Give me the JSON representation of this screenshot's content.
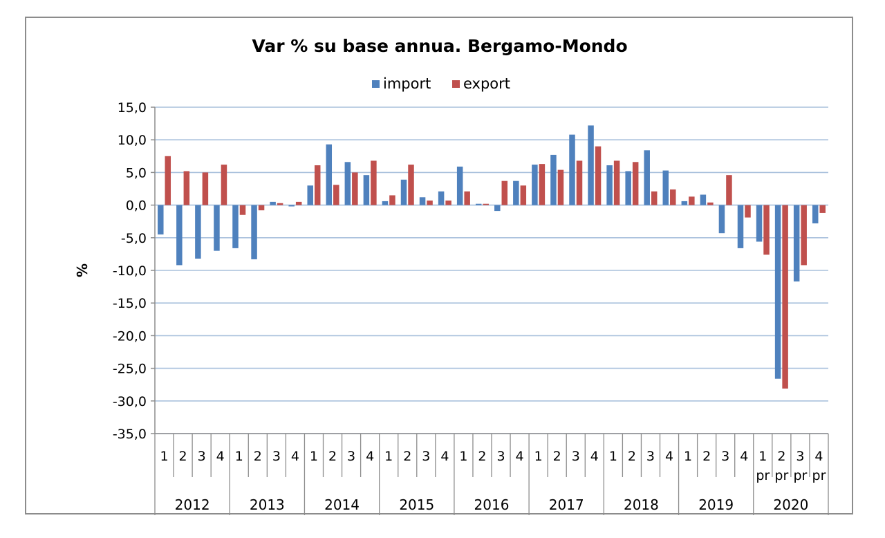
{
  "chart_data": {
    "type": "bar",
    "title": "Var % su base annua. Bergamo-Mondo",
    "ylabel": "%",
    "xlabel": "",
    "ylim": [
      -35,
      15
    ],
    "yticks": [
      15,
      10,
      5,
      0,
      -5,
      -10,
      -15,
      -20,
      -25,
      -30,
      -35
    ],
    "ytick_labels": [
      "15,0",
      "10,0",
      "5,0",
      "0,0",
      "-5,0",
      "-10,0",
      "-15,0",
      "-20,0",
      "-25,0",
      "-30,0",
      "-35,0"
    ],
    "grid": true,
    "legend_position": "top-center",
    "colors": {
      "import": "#4f81bd",
      "export": "#c0504d",
      "grid": "#a8c0dc",
      "axis": "#8c8c8c"
    },
    "years": [
      "2012",
      "2013",
      "2014",
      "2015",
      "2016",
      "2017",
      "2018",
      "2019",
      "2020"
    ],
    "quarters": [
      "1",
      "2",
      "3",
      "4"
    ],
    "quarter_suffix_2020": "pr",
    "categories": [
      "2012 1",
      "2012 2",
      "2012 3",
      "2012 4",
      "2013 1",
      "2013 2",
      "2013 3",
      "2013 4",
      "2014 1",
      "2014 2",
      "2014 3",
      "2014 4",
      "2015 1",
      "2015 2",
      "2015 3",
      "2015 4",
      "2016 1",
      "2016 2",
      "2016 3",
      "2016 4",
      "2017 1",
      "2017 2",
      "2017 3",
      "2017 4",
      "2018 1",
      "2018 2",
      "2018 3",
      "2018 4",
      "2019 1",
      "2019 2",
      "2019 3",
      "2019 4",
      "2020 1 pr",
      "2020 2 pr",
      "2020 3 pr",
      "2020 4 pr"
    ],
    "series": [
      {
        "name": "import",
        "values": [
          -4.5,
          -9.2,
          -8.2,
          -7.0,
          -6.6,
          -8.3,
          0.5,
          -0.2,
          3.0,
          9.3,
          6.6,
          4.6,
          0.6,
          3.9,
          1.2,
          2.1,
          5.9,
          0.2,
          -0.9,
          3.7,
          6.2,
          7.7,
          10.8,
          12.2,
          6.1,
          5.2,
          8.4,
          5.3,
          0.6,
          1.6,
          -4.3,
          -6.6,
          -5.6,
          -26.6,
          -11.7,
          -2.8
        ]
      },
      {
        "name": "export",
        "values": [
          7.5,
          5.2,
          5.0,
          6.2,
          -1.5,
          -0.8,
          0.3,
          0.5,
          6.1,
          3.1,
          5.0,
          6.8,
          1.5,
          6.2,
          0.7,
          0.7,
          2.1,
          0.2,
          3.7,
          3.0,
          6.3,
          5.4,
          6.8,
          9.0,
          6.8,
          6.6,
          2.1,
          2.4,
          1.3,
          0.4,
          4.6,
          -1.9,
          -7.6,
          -28.1,
          -9.2,
          -1.2
        ]
      }
    ]
  }
}
